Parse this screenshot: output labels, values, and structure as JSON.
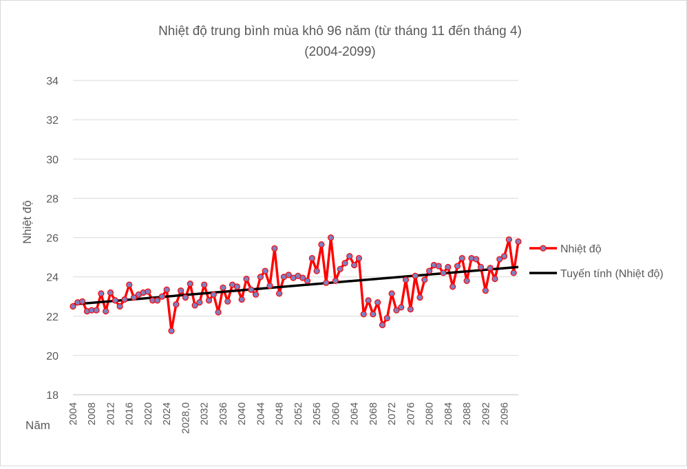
{
  "chart_data": {
    "type": "line",
    "title": "Nhiệt độ trung bình mùa khô 96 năm (từ tháng 11 đến tháng 4)",
    "subtitle": "(2004-2099)",
    "xlabel": "Năm",
    "ylabel": "Nhiệt độ",
    "ylim": [
      18,
      34
    ],
    "yticks": [
      "18",
      "20",
      "22",
      "24",
      "26",
      "28",
      "30",
      "32",
      "34"
    ],
    "grid": true,
    "legend_position": "right",
    "x_tick_labels": [
      {
        "year": 2004,
        "label": "2004"
      },
      {
        "year": 2008,
        "label": "2008"
      },
      {
        "year": 2012,
        "label": "2012"
      },
      {
        "year": 2016,
        "label": "2016"
      },
      {
        "year": 2020,
        "label": "2020"
      },
      {
        "year": 2024,
        "label": "2024"
      },
      {
        "year": 2028,
        "label": "2028,0"
      },
      {
        "year": 2032,
        "label": "2032"
      },
      {
        "year": 2036,
        "label": "2036"
      },
      {
        "year": 2040,
        "label": "2040"
      },
      {
        "year": 2044,
        "label": "2044"
      },
      {
        "year": 2048,
        "label": "2048"
      },
      {
        "year": 2052,
        "label": "2052"
      },
      {
        "year": 2056,
        "label": "2056"
      },
      {
        "year": 2060,
        "label": "2060"
      },
      {
        "year": 2064,
        "label": "2064"
      },
      {
        "year": 2068,
        "label": "2068"
      },
      {
        "year": 2072,
        "label": "2072"
      },
      {
        "year": 2076,
        "label": "2076"
      },
      {
        "year": 2080,
        "label": "2080"
      },
      {
        "year": 2084,
        "label": "2084"
      },
      {
        "year": 2088,
        "label": "2088"
      },
      {
        "year": 2092,
        "label": "2092"
      },
      {
        "year": 2096,
        "label": "2096"
      }
    ],
    "series": [
      {
        "name": "Nhiệt độ",
        "color": "#ff0000",
        "marker_fill": "#7f7fbf",
        "marker_stroke": "#ff0000",
        "x": [
          2004,
          2005,
          2006,
          2007,
          2008,
          2009,
          2010,
          2011,
          2012,
          2013,
          2014,
          2015,
          2016,
          2017,
          2018,
          2019,
          2020,
          2021,
          2022,
          2023,
          2024,
          2025,
          2026,
          2027,
          2028,
          2029,
          2030,
          2031,
          2032,
          2033,
          2034,
          2035,
          2036,
          2037,
          2038,
          2039,
          2040,
          2041,
          2042,
          2043,
          2044,
          2045,
          2046,
          2047,
          2048,
          2049,
          2050,
          2051,
          2052,
          2053,
          2054,
          2055,
          2056,
          2057,
          2058,
          2059,
          2060,
          2061,
          2062,
          2063,
          2064,
          2065,
          2066,
          2067,
          2068,
          2069,
          2070,
          2071,
          2072,
          2073,
          2074,
          2075,
          2076,
          2077,
          2078,
          2079,
          2080,
          2081,
          2082,
          2083,
          2084,
          2085,
          2086,
          2087,
          2088,
          2089,
          2090,
          2091,
          2092,
          2093,
          2094,
          2095,
          2096,
          2097,
          2098,
          2099
        ],
        "values": [
          22.5,
          22.7,
          22.75,
          22.25,
          22.3,
          22.3,
          23.15,
          22.25,
          23.2,
          22.8,
          22.5,
          22.85,
          23.6,
          22.95,
          23.1,
          23.2,
          23.25,
          22.8,
          22.8,
          23.0,
          23.35,
          21.25,
          22.6,
          23.3,
          22.95,
          23.65,
          22.55,
          22.7,
          23.6,
          22.8,
          23.1,
          22.2,
          23.45,
          22.75,
          23.6,
          23.5,
          22.85,
          23.9,
          23.35,
          23.1,
          24.0,
          24.3,
          23.55,
          25.45,
          23.15,
          24.0,
          24.1,
          23.95,
          24.05,
          23.95,
          23.8,
          24.95,
          24.3,
          25.65,
          23.7,
          26.0,
          23.8,
          24.4,
          24.7,
          25.05,
          24.6,
          24.95,
          22.1,
          22.8,
          22.1,
          22.7,
          21.55,
          21.9,
          23.15,
          22.3,
          22.45,
          23.85,
          22.35,
          24.05,
          22.95,
          23.85,
          24.3,
          24.6,
          24.55,
          24.2,
          24.5,
          23.5,
          24.55,
          24.95,
          23.8,
          24.95,
          24.9,
          24.5,
          23.3,
          24.45,
          23.9,
          24.9,
          25.05,
          25.9,
          24.2,
          25.8
        ]
      },
      {
        "name": "Tuyến tính (Nhiệt độ)",
        "color": "#000000",
        "x": [
          2004,
          2099
        ],
        "values": [
          22.6,
          24.5
        ]
      }
    ]
  }
}
